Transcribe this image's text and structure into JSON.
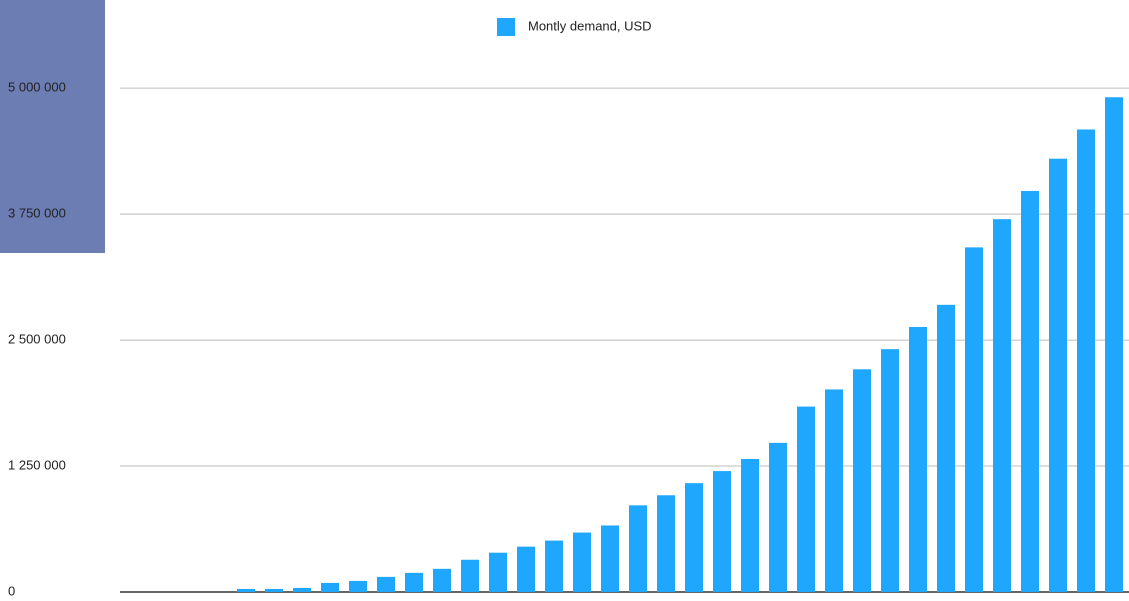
{
  "chart_data": {
    "type": "bar",
    "categories": [
      null,
      null,
      null,
      null,
      null,
      null,
      null,
      null,
      null,
      null,
      null,
      null,
      null,
      null,
      null,
      null,
      null,
      null,
      null,
      null,
      null,
      null,
      null,
      null,
      null,
      null,
      null,
      null,
      null,
      null,
      null,
      null,
      null,
      null,
      null,
      null
    ],
    "series": [
      {
        "name": "Montly demand, USD",
        "color": "#1ea7fd",
        "values": [
          0,
          0,
          0,
          0,
          30000,
          30000,
          40000,
          90000,
          110000,
          150000,
          190000,
          230000,
          320000,
          390000,
          450000,
          510000,
          590000,
          660000,
          860000,
          960000,
          1080000,
          1200000,
          1320000,
          1480000,
          1840000,
          2010000,
          2210000,
          2410000,
          2630000,
          2850000,
          3420000,
          3700000,
          3980000,
          4300000,
          4590000,
          4910000
        ]
      }
    ],
    "ylim": [
      0,
      5875000
    ],
    "yticks": [
      0,
      {
        "value": 1250000,
        "label": "1 250 000"
      },
      {
        "value": 2500000,
        "label": "2 500 000"
      },
      {
        "value": 3750000,
        "label": "3 750 000"
      },
      {
        "value": 5000000,
        "label": "5 000 000"
      }
    ],
    "grid": true
  }
}
